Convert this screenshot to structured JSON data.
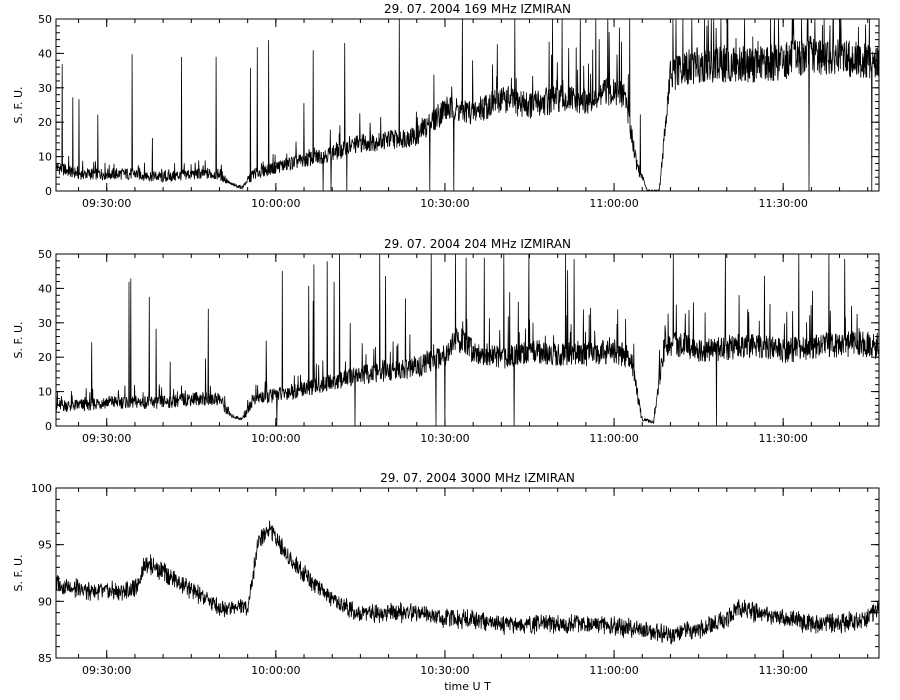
{
  "chart_data": [
    {
      "type": "line",
      "title": "29.  07.  2004    169 MHz    IZMIRAN",
      "ylabel": "S. F. U.",
      "xlabel": "",
      "xlim": [
        "09:21",
        "11:47"
      ],
      "ylim": [
        0,
        50
      ],
      "yticks": [
        0,
        10,
        20,
        30,
        40,
        50
      ],
      "xticks": [
        "09:30:00",
        "10:00:00",
        "10:30:00",
        "11:00:00",
        "11:30:00"
      ],
      "series": [
        {
          "x": [
            "09:21",
            "09:25",
            "09:30",
            "09:35",
            "09:40",
            "09:45",
            "09:50",
            "09:52",
            "09:54",
            "09:56",
            "10:00",
            "10:05",
            "10:10",
            "10:15",
            "10:20",
            "10:25",
            "10:30",
            "10:35",
            "10:40",
            "10:45",
            "10:50",
            "10:55",
            "11:00",
            "11:02",
            "11:04",
            "11:06",
            "11:08",
            "11:10",
            "11:15",
            "11:20",
            "11:25",
            "11:30",
            "11:35",
            "11:40",
            "11:45",
            "11:47"
          ],
          "y": [
            7,
            5,
            5,
            5,
            4,
            5,
            5,
            2,
            1,
            5,
            7,
            9,
            11,
            14,
            15,
            16,
            24,
            23,
            27,
            25,
            27,
            26,
            30,
            28,
            8,
            0,
            0,
            34,
            37,
            37,
            37,
            38,
            40,
            39,
            38,
            37
          ]
        }
      ]
    },
    {
      "type": "line",
      "title": "29.  07.  2004    204 MHz    IZMIRAN",
      "ylabel": "S. F. U.",
      "xlabel": "",
      "xlim": [
        "09:21",
        "11:47"
      ],
      "ylim": [
        0,
        50
      ],
      "yticks": [
        0,
        10,
        20,
        30,
        40,
        50
      ],
      "xticks": [
        "09:30:00",
        "10:00:00",
        "10:30:00",
        "11:00:00",
        "11:30:00"
      ],
      "series": [
        {
          "x": [
            "09:21",
            "09:25",
            "09:30",
            "09:35",
            "09:40",
            "09:45",
            "09:50",
            "09:52",
            "09:54",
            "09:56",
            "10:00",
            "10:05",
            "10:10",
            "10:15",
            "10:20",
            "10:25",
            "10:30",
            "10:32",
            "10:35",
            "10:40",
            "10:45",
            "10:50",
            "10:55",
            "11:00",
            "11:03",
            "11:05",
            "11:07",
            "11:09",
            "11:12",
            "11:15",
            "11:20",
            "11:25",
            "11:30",
            "11:35",
            "11:40",
            "11:45",
            "11:47"
          ],
          "y": [
            6,
            6,
            7,
            7,
            7,
            8,
            8,
            3,
            2,
            8,
            9,
            11,
            13,
            15,
            16,
            17,
            21,
            26,
            22,
            20,
            22,
            21,
            21,
            22,
            20,
            2,
            1,
            24,
            24,
            22,
            23,
            24,
            22,
            23,
            24,
            24,
            23
          ]
        }
      ]
    },
    {
      "type": "line",
      "title": "29.  07.  2004    3000 MHz    IZMIRAN",
      "ylabel": "S. F. U.",
      "xlabel": "time  U T",
      "xlim": [
        "09:21",
        "11:47"
      ],
      "ylim": [
        85,
        100
      ],
      "yticks": [
        85,
        90,
        95,
        100
      ],
      "xticks": [
        "09:30:00",
        "10:00:00",
        "10:30:00",
        "11:00:00",
        "11:30:00"
      ],
      "series": [
        {
          "x": [
            "09:21",
            "09:25",
            "09:30",
            "09:35",
            "09:37",
            "09:40",
            "09:45",
            "09:50",
            "09:55",
            "09:57",
            "09:59",
            "10:02",
            "10:05",
            "10:10",
            "10:15",
            "10:20",
            "10:25",
            "10:30",
            "10:35",
            "10:40",
            "10:45",
            "10:50",
            "10:55",
            "11:00",
            "11:05",
            "11:10",
            "11:15",
            "11:20",
            "11:22",
            "11:25",
            "11:30",
            "11:35",
            "11:40",
            "11:45",
            "11:47"
          ],
          "y": [
            91.5,
            91.0,
            90.8,
            91.0,
            93.5,
            92.5,
            91.0,
            89.5,
            89.5,
            95.5,
            96.5,
            94.0,
            92.5,
            90.0,
            89.0,
            89.0,
            89.0,
            88.5,
            88.5,
            88.0,
            88.0,
            88.0,
            88.0,
            87.8,
            87.5,
            87.0,
            87.5,
            88.5,
            89.5,
            89.0,
            88.5,
            88.0,
            88.0,
            88.5,
            89.5
          ]
        }
      ]
    }
  ]
}
